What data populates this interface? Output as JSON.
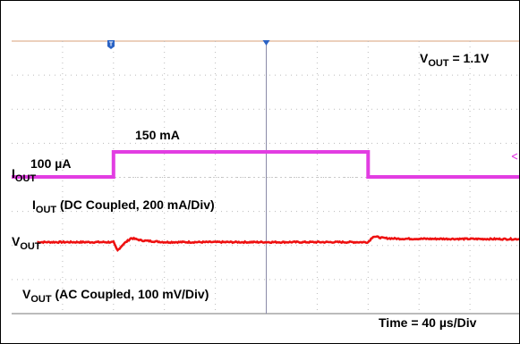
{
  "chart_data": {
    "type": "line",
    "time_axis": {
      "label": "Time = 40 µs/Div",
      "unit": "µs",
      "per_div": 40,
      "range": [
        -200,
        200
      ]
    },
    "series": [
      {
        "name": "IOUT",
        "label_main": "I",
        "label_sub": "OUT",
        "color": "#e23de2",
        "coupling_label_rest": " (DC Coupled, 200 mA/Div)",
        "unit": "mA",
        "x": [
          -200,
          -120,
          -120,
          80,
          80,
          200
        ],
        "values": [
          0.1,
          0.1,
          150,
          150,
          0.1,
          0.1
        ],
        "level_labels": [
          "100 µA",
          "150 mA"
        ]
      },
      {
        "name": "VOUT",
        "label_main": "V",
        "label_sub": "OUT",
        "color": "#ee1111",
        "coupling_label_rest": " (AC Coupled, 100 mV/Div)",
        "unit": "mV (AC)",
        "x": [
          -200,
          -120,
          -117,
          -112,
          -106,
          -98,
          -80,
          80,
          84,
          92,
          104,
          200
        ],
        "values": [
          0,
          0,
          -25,
          -5,
          12,
          5,
          0,
          0,
          17,
          12,
          10,
          9
        ]
      }
    ],
    "annotation": {
      "main": "V",
      "sub": "OUT",
      "rest": " = 1.1V"
    },
    "grid": true
  }
}
